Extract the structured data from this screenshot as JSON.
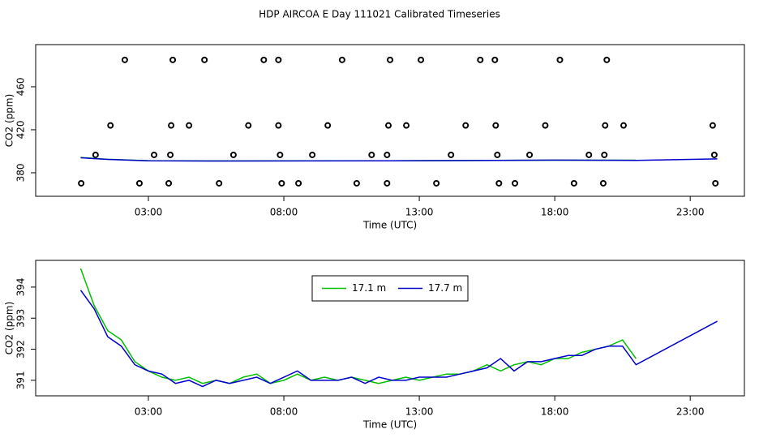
{
  "title": "HDP AIRCOA E  Day 111021  Calibrated Timeseries",
  "chart_data": [
    {
      "type": "line",
      "xlabel": "Time (UTC)",
      "ylabel": "CO2 (ppm)",
      "xlim": [
        -1.16,
        25.0
      ],
      "ylim": [
        358.1,
        499.2
      ],
      "xticks": [
        {
          "value": 3,
          "label": "03:00"
        },
        {
          "value": 8,
          "label": "08:00"
        },
        {
          "value": 13,
          "label": "13:00"
        },
        {
          "value": 18,
          "label": "18:00"
        },
        {
          "value": 23,
          "label": "23:00"
        }
      ],
      "yticks": [
        380,
        420,
        460
      ],
      "series": [
        {
          "color": "#000000",
          "style": "points",
          "x": [
            2.13,
            3.9,
            5.07,
            7.26,
            7.8,
            10.15,
            11.92,
            13.06,
            15.25,
            15.79,
            18.19,
            19.92,
            1.6,
            3.84,
            4.5,
            6.69,
            7.8,
            9.62,
            11.86,
            12.52,
            14.71,
            15.82,
            17.65,
            19.86,
            20.54,
            23.83,
            1.05,
            3.21,
            3.81,
            6.14,
            7.86,
            9.05,
            11.24,
            11.81,
            14.17,
            15.88,
            17.07,
            19.26,
            19.83,
            23.89,
            0.52,
            2.67,
            3.75,
            5.61,
            7.92,
            8.54,
            10.69,
            11.81,
            13.63,
            15.94,
            16.53,
            18.71,
            19.79,
            23.93
          ],
          "values": [
            485,
            485,
            485,
            485,
            485,
            485,
            485,
            485,
            485,
            485,
            485,
            485,
            424,
            424,
            424,
            424,
            424,
            424,
            424,
            424,
            424,
            424,
            424,
            424,
            424,
            424,
            396.6,
            396.6,
            396.6,
            396.6,
            396.6,
            396.6,
            396.6,
            396.6,
            396.6,
            396.6,
            396.6,
            396.6,
            396.6,
            396.6,
            370.2,
            370.2,
            370.2,
            370.2,
            370.2,
            370.2,
            370.2,
            370.2,
            370.2,
            370.2,
            370.2,
            370.2,
            370.2,
            370.2
          ]
        },
        {
          "color": "#00c000",
          "style": "line",
          "x": [
            0.5,
            1.5,
            3,
            6,
            9,
            12,
            15,
            18,
            21
          ],
          "values": [
            394.2,
            392.5,
            391.2,
            391.0,
            391.1,
            391.1,
            391.4,
            391.7,
            391.7
          ]
        },
        {
          "color": "#0000cc",
          "style": "line",
          "x": [
            0.5,
            1.5,
            3,
            6,
            9,
            12,
            15,
            18,
            21,
            24
          ],
          "values": [
            393.9,
            392.4,
            391.1,
            390.9,
            391.0,
            391.1,
            391.4,
            391.8,
            391.5,
            392.9
          ]
        }
      ]
    },
    {
      "type": "line",
      "xlabel": "Time (UTC)",
      "ylabel": "CO2 (ppm)",
      "xlim": [
        -1.16,
        25.0
      ],
      "ylim": [
        390.5,
        394.86
      ],
      "xticks": [
        {
          "value": 3,
          "label": "03:00"
        },
        {
          "value": 8,
          "label": "08:00"
        },
        {
          "value": 13,
          "label": "13:00"
        },
        {
          "value": 18,
          "label": "18:00"
        },
        {
          "value": 23,
          "label": "23:00"
        }
      ],
      "yticks": [
        391,
        392,
        393,
        394
      ],
      "legend": "top-center",
      "x": [
        0.5,
        1,
        1.5,
        2,
        2.5,
        3,
        3.5,
        4,
        4.5,
        5,
        5.5,
        6,
        6.5,
        7,
        7.5,
        8,
        8.5,
        9,
        9.5,
        10,
        10.5,
        11,
        11.5,
        12,
        12.5,
        13,
        13.5,
        14,
        14.5,
        15,
        15.5,
        16,
        16.5,
        17,
        17.5,
        18,
        18.5,
        19,
        19.5,
        20,
        20.5,
        21,
        24
      ],
      "series": [
        {
          "name": "17.1 m",
          "color": "#00c000",
          "style": "line",
          "values": [
            394.6,
            393.4,
            392.6,
            392.3,
            391.6,
            391.3,
            391.1,
            391.0,
            391.1,
            390.9,
            391.0,
            390.9,
            391.1,
            391.2,
            390.9,
            391.0,
            391.2,
            391.0,
            391.1,
            391.0,
            391.1,
            391.0,
            390.9,
            391.0,
            391.1,
            391.0,
            391.1,
            391.2,
            391.2,
            391.3,
            391.5,
            391.3,
            391.5,
            391.6,
            391.5,
            391.7,
            391.7,
            391.9,
            392.0,
            392.1,
            392.3,
            391.7,
            null
          ]
        },
        {
          "name": "17.7 m",
          "color": "#0000cc",
          "style": "line",
          "values": [
            393.9,
            393.3,
            392.4,
            392.1,
            391.5,
            391.3,
            391.2,
            390.9,
            391.0,
            390.8,
            391.0,
            390.9,
            391.0,
            391.1,
            390.9,
            391.1,
            391.3,
            391.0,
            391.0,
            391.0,
            391.1,
            390.9,
            391.1,
            391.0,
            391.0,
            391.1,
            391.1,
            391.1,
            391.2,
            391.3,
            391.4,
            391.7,
            391.3,
            391.6,
            391.6,
            391.7,
            391.8,
            391.8,
            392.0,
            392.1,
            392.1,
            391.5,
            392.9
          ]
        }
      ]
    }
  ]
}
